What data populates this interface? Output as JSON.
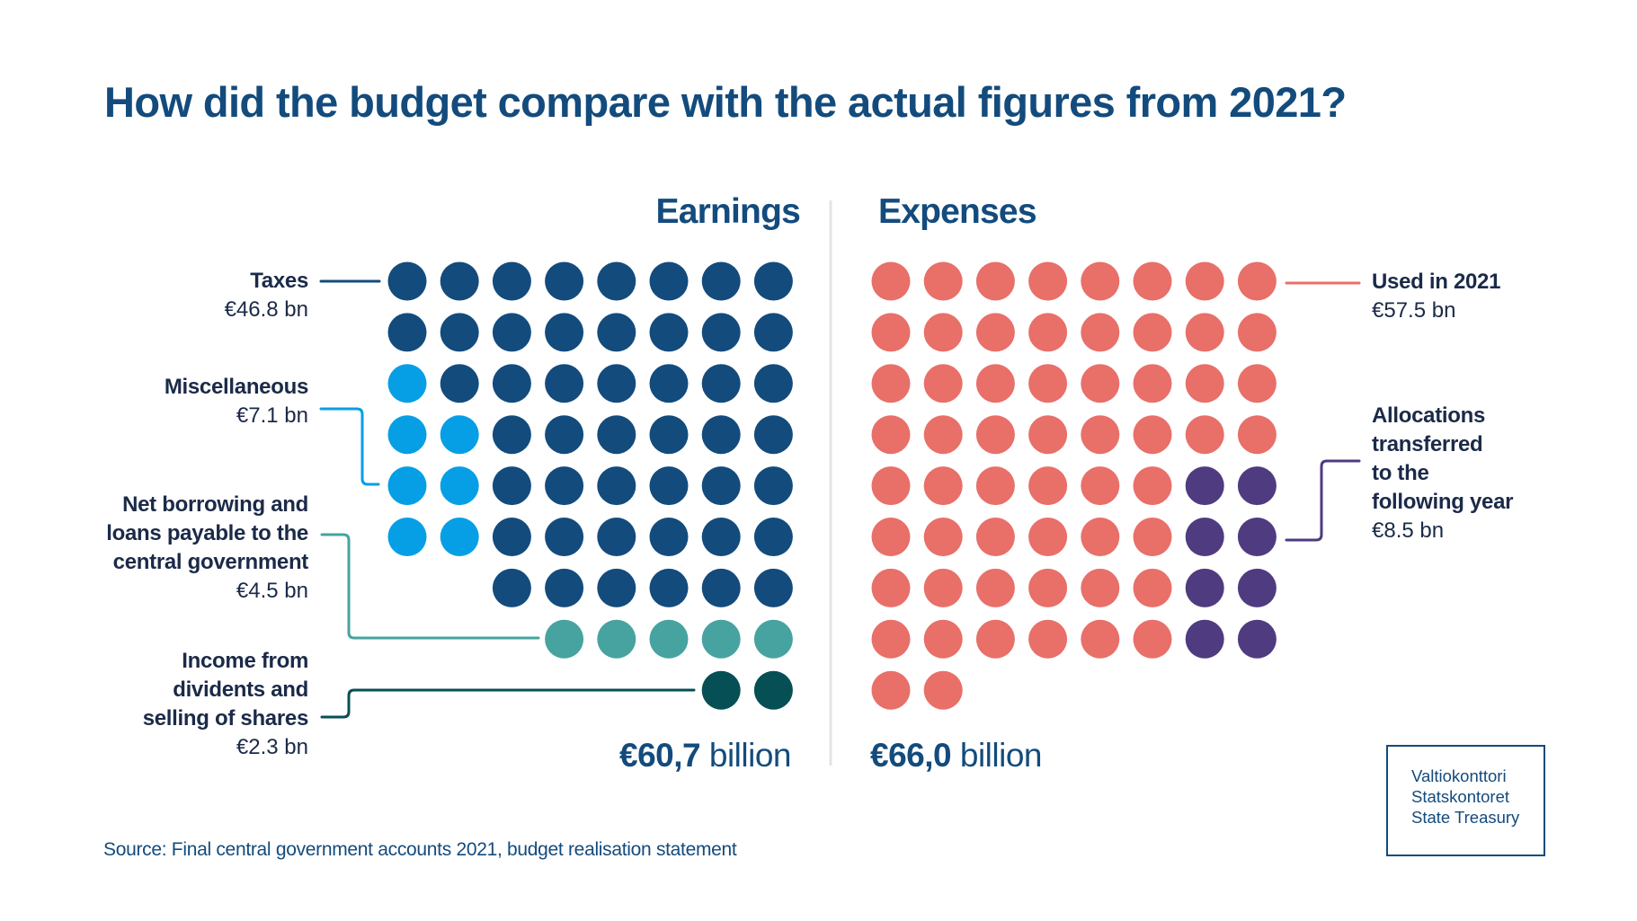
{
  "title": "How did the budget compare with the actual figures from 2021?",
  "source": "Source: Final central government accounts 2021, budget realisation statement",
  "logo": {
    "lines": [
      "Valtiokonttori",
      "Statskontoret",
      "State Treasury"
    ]
  },
  "colors": {
    "heading": "#134b7d",
    "label_text": "#1b2a48",
    "divider": "#e4e4e6"
  },
  "chart_data": {
    "type": "waffle",
    "unit": "€ billion (1 dot ≈ €1 bn)",
    "title": "How did the budget compare with the actual figures from 2021?",
    "columns_per_row": 8,
    "panels": [
      {
        "name": "Earnings",
        "total_label": "60,7",
        "total_prefix": "€",
        "total_suffix": "billion",
        "total": 60.7,
        "align": "right",
        "categories": [
          {
            "name": "Taxes",
            "value_label": "€46.8 bn",
            "value": 46.8,
            "color": "#134b7d",
            "legend": "left"
          },
          {
            "name": "Miscellaneous",
            "value_label": "€7.1 bn",
            "value": 7.1,
            "color": "#069fe5",
            "legend": "left"
          },
          {
            "name": "Net borrowing and loans payable to the central government",
            "name_lines": [
              "Net borrowing and",
              "loans payable to the",
              "central government"
            ],
            "value_label": "€4.5 bn",
            "value": 4.5,
            "color": "#47a3a0",
            "legend": "left"
          },
          {
            "name": "Income from dividents and selling of shares",
            "name_lines": [
              "Income from",
              "dividents and",
              "selling of shares"
            ],
            "value_label": "€2.3 bn",
            "value": 2.3,
            "color": "#064f55",
            "legend": "left"
          }
        ],
        "grid": [
          [
            "Taxes",
            "Taxes",
            "Taxes",
            "Taxes",
            "Taxes",
            "Taxes",
            "Taxes",
            "Taxes"
          ],
          [
            "Taxes",
            "Taxes",
            "Taxes",
            "Taxes",
            "Taxes",
            "Taxes",
            "Taxes",
            "Taxes"
          ],
          [
            "Miscellaneous",
            "Taxes",
            "Taxes",
            "Taxes",
            "Taxes",
            "Taxes",
            "Taxes",
            "Taxes"
          ],
          [
            "Miscellaneous",
            "Miscellaneous",
            "Taxes",
            "Taxes",
            "Taxes",
            "Taxes",
            "Taxes",
            "Taxes"
          ],
          [
            "Miscellaneous",
            "Miscellaneous",
            "Taxes",
            "Taxes",
            "Taxes",
            "Taxes",
            "Taxes",
            "Taxes"
          ],
          [
            "Miscellaneous",
            "Miscellaneous",
            "Taxes",
            "Taxes",
            "Taxes",
            "Taxes",
            "Taxes",
            "Taxes"
          ],
          [
            null,
            null,
            "Taxes",
            "Taxes",
            "Taxes",
            "Taxes",
            "Taxes",
            "Taxes"
          ],
          [
            null,
            null,
            null,
            "Net borrowing",
            "Net borrowing",
            "Net borrowing",
            "Net borrowing",
            "Net borrowing"
          ],
          [
            null,
            null,
            null,
            null,
            null,
            null,
            "Income from dividents",
            "Income from dividents"
          ]
        ]
      },
      {
        "name": "Expenses",
        "total_label": "66,0",
        "total_prefix": "€",
        "total_suffix": "billion",
        "total": 66.0,
        "align": "left",
        "categories": [
          {
            "name": "Used in 2021",
            "value_label": "€57.5 bn",
            "value": 57.5,
            "color": "#e96f69",
            "legend": "right"
          },
          {
            "name": "Allocations transferred to the following year",
            "name_lines": [
              "Allocations",
              "transferred",
              "to the",
              "following year"
            ],
            "value_label": "€8.5 bn",
            "value": 8.5,
            "color": "#4f3b80",
            "legend": "right"
          }
        ],
        "grid": [
          [
            "Used",
            "Used",
            "Used",
            "Used",
            "Used",
            "Used",
            "Used",
            "Used"
          ],
          [
            "Used",
            "Used",
            "Used",
            "Used",
            "Used",
            "Used",
            "Used",
            "Used"
          ],
          [
            "Used",
            "Used",
            "Used",
            "Used",
            "Used",
            "Used",
            "Used",
            "Used"
          ],
          [
            "Used",
            "Used",
            "Used",
            "Used",
            "Used",
            "Used",
            "Used",
            "Used"
          ],
          [
            "Used",
            "Used",
            "Used",
            "Used",
            "Used",
            "Used",
            "Allocations",
            "Allocations"
          ],
          [
            "Used",
            "Used",
            "Used",
            "Used",
            "Used",
            "Used",
            "Allocations",
            "Allocations"
          ],
          [
            "Used",
            "Used",
            "Used",
            "Used",
            "Used",
            "Used",
            "Allocations",
            "Allocations"
          ],
          [
            "Used",
            "Used",
            "Used",
            "Used",
            "Used",
            "Used",
            "Allocations",
            "Allocations"
          ],
          [
            "Used",
            "Used",
            null,
            null,
            null,
            null,
            null,
            null
          ]
        ]
      }
    ]
  }
}
